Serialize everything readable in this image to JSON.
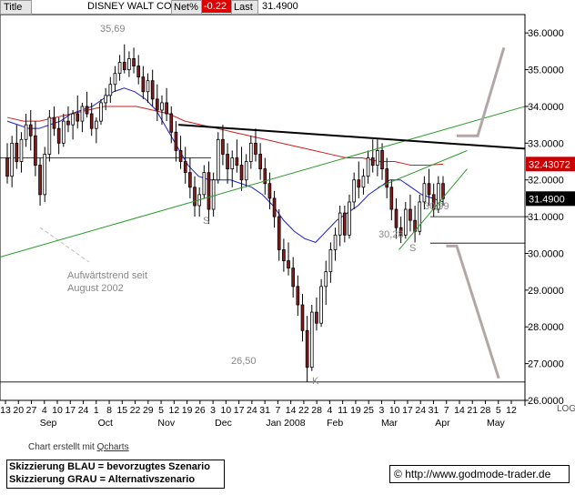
{
  "header": {
    "title_label": "Title",
    "instrument": "DISNEY WALT CO",
    "net_label": "Net%",
    "net_value": "-0.22",
    "last_label": "Last",
    "last_value": "31.4900"
  },
  "price_tags": {
    "ma_value": "32.43072",
    "last_value": "31.4900",
    "colors": {
      "ma_tag": "#cc0000",
      "last_tag": "#000000"
    }
  },
  "annotations": {
    "high": "35,69",
    "low": "26,50",
    "low_mar": "30,28",
    "low_apr": "30,99",
    "s_left": "S",
    "s_right": "S",
    "k": "K",
    "trend_line1": "Aufwärtstrend seit",
    "trend_line2": "August 2002"
  },
  "footer": {
    "credit_prefix": "Chart erstellt mit ",
    "credit_link": "Qcharts",
    "legend_line1": "Skizzierung BLAU = bevorzugtes Szenario",
    "legend_line2": "Skizzierung GRAU = Alternativszenario",
    "url": "http://www.godmode-trader.de"
  },
  "chart_data": {
    "type": "candlestick",
    "title": "DISNEY WALT CO",
    "yaxis_side": "right",
    "ylim": [
      26.0,
      36.5
    ],
    "yticks": [
      26.0,
      27.0,
      28.0,
      29.0,
      30.0,
      31.0,
      32.0,
      33.0,
      34.0,
      35.0,
      36.0
    ],
    "ytick_labels": [
      "26.0000",
      "27.0000",
      "28.0000",
      "29.0000",
      "30.0000",
      "31.0000",
      "32.0000",
      "33.0000",
      "34.0000",
      "35.0000",
      "36.0000"
    ],
    "log_label": "LOG",
    "x_day_ticks": [
      "13",
      "20",
      "27",
      "4",
      "10",
      "17",
      "24",
      "1",
      "8",
      "15",
      "22",
      "29",
      "5",
      "12",
      "19",
      "26",
      "3",
      "10",
      "17",
      "24",
      "31",
      "7",
      "14",
      "22",
      "28",
      "4",
      "11",
      "19",
      "25",
      "3",
      "10",
      "17",
      "24",
      "31",
      "7",
      "14",
      "21",
      "28",
      "5",
      "12"
    ],
    "x_month_labels": [
      "Sep",
      "Oct",
      "Nov",
      "Dec",
      "Jan 2008",
      "Feb",
      "Mar",
      "Apr",
      "May"
    ],
    "date_range": [
      "2007-08-13",
      "2008-05-12"
    ],
    "series": [
      {
        "name": "Price",
        "kind": "ohlc",
        "colors": {
          "up": "#ffffff",
          "down": "#8b1a1a"
        },
        "values": [
          [
            32.6,
            33.0,
            31.9,
            32.1
          ],
          [
            32.1,
            33.2,
            31.8,
            33.0
          ],
          [
            33.0,
            33.5,
            32.3,
            32.5
          ],
          [
            32.5,
            33.3,
            32.2,
            33.1
          ],
          [
            33.1,
            33.8,
            32.9,
            33.5
          ],
          [
            33.5,
            33.9,
            32.8,
            33.2
          ],
          [
            33.2,
            33.6,
            32.1,
            32.4
          ],
          [
            32.4,
            32.6,
            31.3,
            31.6
          ],
          [
            31.6,
            32.9,
            31.4,
            32.7
          ],
          [
            32.7,
            33.9,
            32.5,
            33.7
          ],
          [
            33.7,
            34.0,
            33.2,
            33.4
          ],
          [
            33.4,
            33.7,
            32.7,
            33.0
          ],
          [
            33.0,
            33.8,
            32.9,
            33.6
          ],
          [
            33.6,
            34.0,
            33.3,
            33.5
          ],
          [
            33.5,
            33.9,
            33.1,
            33.8
          ],
          [
            33.8,
            34.3,
            33.4,
            33.6
          ],
          [
            33.6,
            34.1,
            33.3,
            34.0
          ],
          [
            34.0,
            34.4,
            33.7,
            33.8
          ],
          [
            33.8,
            34.1,
            33.2,
            33.4
          ],
          [
            33.4,
            33.7,
            33.0,
            33.6
          ],
          [
            33.6,
            34.2,
            33.5,
            34.1
          ],
          [
            34.1,
            34.5,
            33.9,
            34.3
          ],
          [
            34.3,
            34.8,
            34.1,
            34.6
          ],
          [
            34.6,
            35.1,
            34.4,
            34.9
          ],
          [
            34.9,
            35.4,
            34.7,
            35.2
          ],
          [
            35.2,
            35.69,
            34.9,
            35.0
          ],
          [
            35.0,
            35.5,
            34.8,
            35.3
          ],
          [
            35.3,
            35.6,
            34.9,
            35.1
          ],
          [
            35.1,
            35.4,
            34.6,
            34.8
          ],
          [
            34.8,
            35.1,
            34.2,
            34.4
          ],
          [
            34.4,
            34.9,
            34.1,
            34.7
          ],
          [
            34.7,
            35.0,
            34.0,
            34.2
          ],
          [
            34.2,
            34.6,
            33.6,
            33.9
          ],
          [
            33.9,
            34.3,
            33.5,
            34.1
          ],
          [
            34.1,
            34.5,
            33.6,
            33.8
          ],
          [
            33.8,
            34.0,
            33.0,
            33.3
          ],
          [
            33.3,
            33.6,
            32.5,
            32.8
          ],
          [
            32.8,
            33.2,
            32.3,
            32.5
          ],
          [
            32.5,
            32.9,
            31.9,
            32.2
          ],
          [
            32.2,
            32.6,
            31.5,
            31.8
          ],
          [
            31.8,
            32.1,
            31.0,
            31.3
          ],
          [
            31.3,
            31.8,
            31.0,
            31.6
          ],
          [
            31.6,
            32.4,
            31.5,
            32.2
          ],
          [
            32.2,
            32.5,
            30.8,
            31.2
          ],
          [
            31.2,
            32.2,
            31.0,
            32.0
          ],
          [
            32.0,
            33.3,
            31.9,
            33.1
          ],
          [
            33.1,
            33.5,
            32.4,
            32.7
          ],
          [
            32.7,
            33.0,
            31.9,
            32.3
          ],
          [
            32.3,
            32.8,
            31.8,
            32.6
          ],
          [
            32.6,
            33.1,
            32.2,
            32.4
          ],
          [
            32.4,
            32.9,
            31.7,
            32.0
          ],
          [
            32.0,
            32.7,
            31.8,
            32.5
          ],
          [
            32.5,
            33.2,
            32.3,
            33.0
          ],
          [
            33.0,
            33.4,
            32.5,
            32.7
          ],
          [
            32.7,
            33.0,
            32.0,
            32.3
          ],
          [
            32.3,
            32.6,
            31.6,
            31.9
          ],
          [
            31.9,
            32.2,
            31.2,
            31.5
          ],
          [
            31.5,
            31.7,
            30.7,
            31.0
          ],
          [
            31.0,
            31.2,
            29.8,
            30.1
          ],
          [
            30.1,
            30.4,
            29.5,
            29.8
          ],
          [
            29.8,
            30.3,
            29.4,
            29.6
          ],
          [
            29.6,
            29.9,
            28.8,
            29.1
          ],
          [
            29.1,
            29.4,
            28.3,
            28.6
          ],
          [
            28.6,
            28.9,
            27.6,
            27.9
          ],
          [
            27.9,
            28.3,
            26.5,
            26.9
          ],
          [
            26.9,
            28.6,
            26.8,
            28.4
          ],
          [
            28.4,
            28.8,
            27.9,
            28.1
          ],
          [
            28.1,
            29.3,
            28.0,
            29.1
          ],
          [
            29.1,
            29.8,
            28.6,
            29.5
          ],
          [
            29.5,
            30.3,
            29.2,
            30.1
          ],
          [
            30.1,
            30.7,
            29.8,
            30.5
          ],
          [
            30.5,
            31.3,
            30.2,
            31.1
          ],
          [
            31.1,
            31.3,
            30.3,
            30.5
          ],
          [
            30.5,
            31.6,
            30.4,
            31.4
          ],
          [
            31.4,
            32.2,
            31.2,
            32.0
          ],
          [
            32.0,
            32.5,
            31.5,
            31.8
          ],
          [
            31.8,
            32.3,
            31.6,
            32.1
          ],
          [
            32.1,
            32.8,
            31.9,
            32.6
          ],
          [
            32.6,
            33.1,
            32.2,
            32.4
          ],
          [
            32.4,
            33.1,
            32.1,
            32.8
          ],
          [
            32.8,
            33.0,
            32.0,
            32.3
          ],
          [
            32.3,
            32.6,
            31.5,
            31.8
          ],
          [
            31.8,
            32.0,
            30.9,
            31.2
          ],
          [
            31.2,
            31.5,
            30.4,
            30.7
          ],
          [
            30.7,
            31.0,
            30.28,
            30.5
          ],
          [
            30.5,
            31.4,
            30.4,
            31.2
          ],
          [
            31.2,
            31.6,
            30.6,
            30.9
          ],
          [
            30.9,
            31.3,
            30.3,
            30.6
          ],
          [
            30.6,
            31.6,
            30.5,
            31.4
          ],
          [
            31.4,
            32.1,
            31.2,
            31.9
          ],
          [
            31.9,
            32.3,
            31.3,
            31.6
          ],
          [
            31.6,
            31.9,
            30.99,
            31.2
          ],
          [
            31.2,
            32.1,
            31.1,
            31.9
          ],
          [
            31.9,
            32.1,
            31.3,
            31.49
          ]
        ]
      },
      {
        "name": "MA fast",
        "kind": "line",
        "color": "#1f1fcc",
        "values": [
          33.6,
          33.5,
          33.4,
          33.4,
          33.5,
          33.6,
          33.8,
          33.9,
          34.0,
          34.2,
          34.4,
          34.5,
          34.4,
          34.2,
          33.9,
          33.4,
          32.9,
          32.4,
          32.1,
          32.0,
          32.0,
          32.0,
          31.9,
          31.8,
          31.6,
          31.3,
          30.9,
          30.6,
          30.4,
          30.3,
          30.6,
          30.9,
          31.1,
          31.3,
          31.6,
          31.8,
          32.0,
          32.0,
          31.8,
          31.6,
          31.5,
          31.4
        ]
      },
      {
        "name": "MA slow",
        "kind": "line",
        "color": "#cc1f1f",
        "values": [
          33.7,
          33.6,
          33.6,
          33.7,
          33.8,
          33.9,
          34.0,
          34.0,
          34.0,
          33.9,
          33.8,
          33.6,
          33.5,
          33.4,
          33.3,
          33.2,
          33.1,
          33.0,
          32.9,
          32.8,
          32.7,
          32.6,
          32.6,
          32.5,
          32.5,
          32.4,
          32.4,
          32.43
        ]
      }
    ],
    "reference_lines": [
      {
        "name": "support-upper",
        "value": 31.0
      },
      {
        "name": "support-lower",
        "value": 30.28
      },
      {
        "name": "low-line",
        "value": 26.5
      },
      {
        "name": "neckline-left",
        "value": 32.6
      }
    ],
    "trendlines": [
      {
        "name": "green-long-term",
        "color": "#2a9a2a",
        "from": [
          0,
          29.9
        ],
        "to": [
          1,
          34.0
        ]
      },
      {
        "name": "black-resistance",
        "color": "#000000",
        "from": [
          0.34,
          33.5
        ],
        "to": [
          1,
          32.85
        ]
      },
      {
        "name": "green-channel-upper",
        "color": "#2a9a2a",
        "from": [
          0.72,
          31.8
        ],
        "to": [
          0.89,
          32.8
        ]
      },
      {
        "name": "green-channel-lower",
        "color": "#2a9a2a",
        "from": [
          0.76,
          30.1
        ],
        "to": [
          0.89,
          32.3
        ]
      }
    ],
    "scenario_arrows": [
      {
        "name": "blue-preferred",
        "color": "#b4a6a6",
        "points": [
          [
            0.87,
            33.2
          ],
          [
            0.91,
            33.2
          ],
          [
            0.96,
            35.6
          ]
        ]
      },
      {
        "name": "grey-alternative",
        "color": "#b4a6a6",
        "points": [
          [
            0.85,
            30.2
          ],
          [
            0.87,
            30.2
          ],
          [
            0.95,
            26.6
          ]
        ]
      }
    ]
  }
}
